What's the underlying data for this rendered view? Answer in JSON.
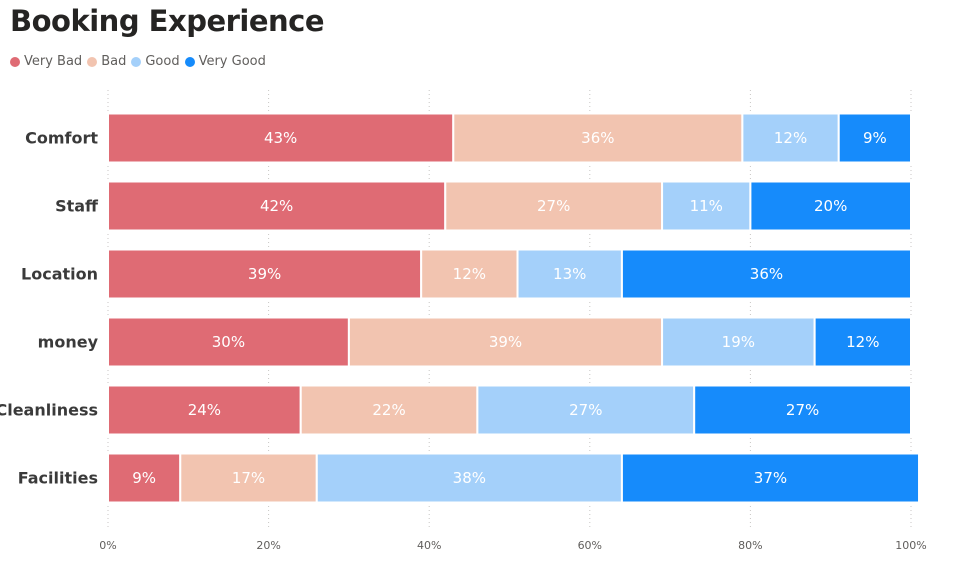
{
  "title": "Booking Experience",
  "legend": [
    {
      "label": "Very Bad",
      "color": "#df6b74"
    },
    {
      "label": "Bad",
      "color": "#f2c4b0"
    },
    {
      "label": "Good",
      "color": "#a4d0fa"
    },
    {
      "label": "Very Good",
      "color": "#168bfb"
    }
  ],
  "chart_data": {
    "type": "bar",
    "orientation": "horizontal",
    "stacked": "100%",
    "title": "Booking Experience",
    "categories": [
      "Comfort",
      "Staff",
      "Location",
      "money",
      "Cleanliness",
      "Facilities"
    ],
    "series": [
      {
        "name": "Very Bad",
        "color": "#df6b74",
        "values": [
          43,
          42,
          39,
          30,
          24,
          9
        ],
        "labels": [
          "43%",
          "42%",
          "39%",
          "30%",
          "24%",
          "9%"
        ]
      },
      {
        "name": "Bad",
        "color": "#f2c4b0",
        "values": [
          36,
          27,
          12,
          39,
          22,
          17
        ],
        "labels": [
          "36%",
          "27%",
          "12%",
          "39%",
          "22%",
          "17%"
        ]
      },
      {
        "name": "Good",
        "color": "#a4d0fa",
        "values": [
          12,
          11,
          13,
          19,
          27,
          38
        ],
        "labels": [
          "12%",
          "11%",
          "13%",
          "19%",
          "27%",
          "38%"
        ]
      },
      {
        "name": "Very Good",
        "color": "#168bfb",
        "values": [
          9,
          20,
          36,
          12,
          27,
          37
        ],
        "labels": [
          "9%",
          "20%",
          "36%",
          "12%",
          "27%",
          "37%"
        ]
      }
    ],
    "xlim": [
      0,
      100
    ],
    "xticks": [
      0,
      20,
      40,
      60,
      80,
      100
    ],
    "xtick_labels": [
      "0%",
      "20%",
      "40%",
      "60%",
      "80%",
      "100%"
    ],
    "grid": "vertical dotted",
    "legend_position": "top-left"
  }
}
